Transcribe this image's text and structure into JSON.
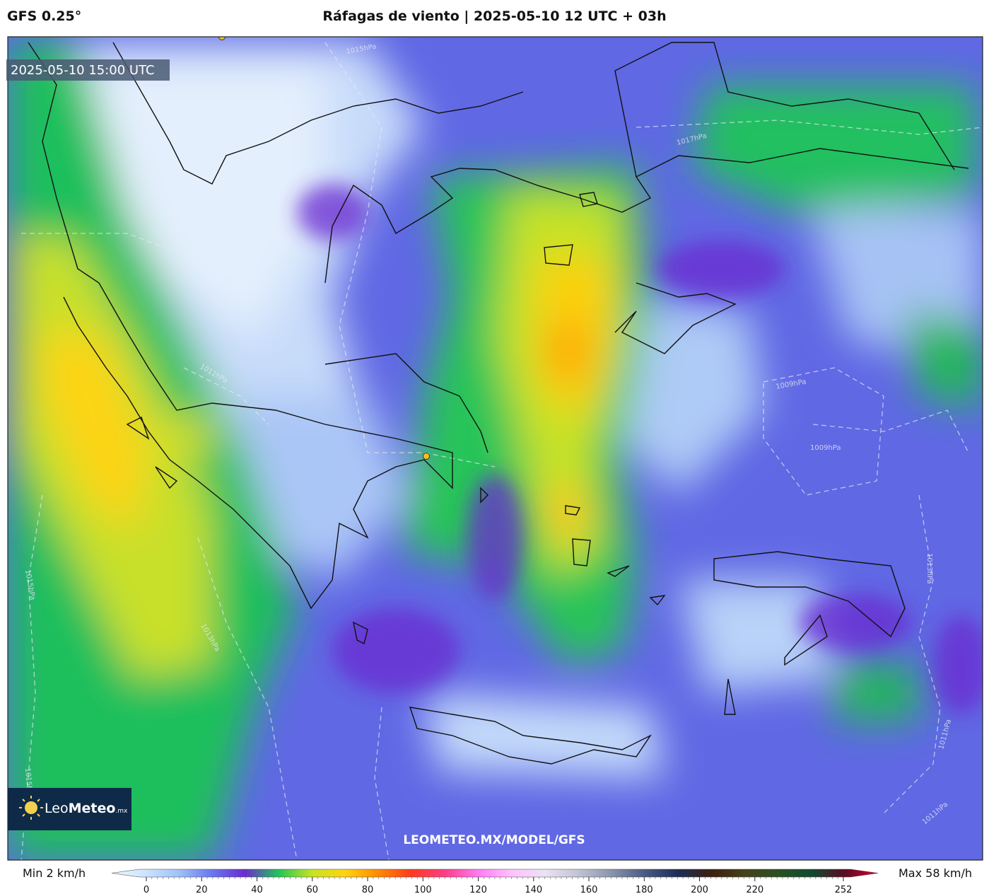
{
  "header": {
    "model": "GFS 0.25°",
    "title": "Ráfagas de viento | 2025-05-10 12 UTC + 03h"
  },
  "map": {
    "valid_time": "2025-05-10 15:00 UTC",
    "watermark": "LEOMETEO.MX/MODEL/GFS",
    "logo": {
      "name": "Leo",
      "brand": "Meteo",
      "suffix": ".mx"
    },
    "isobar_labels": [
      "1017hPa",
      "1009hPa",
      "1009hPa",
      "1013hPa",
      "1011hPa",
      "1011hPa",
      "1015hPa",
      "1015hPa",
      "1013hPa",
      "1011hPa",
      "1015hPa"
    ]
  },
  "colorbar": {
    "min_label": "Min 2 km/h",
    "max_label": "Max 58 km/h",
    "ticks": [
      0,
      20,
      40,
      60,
      80,
      100,
      120,
      140,
      160,
      180,
      200,
      220,
      252
    ],
    "colors": [
      "#eef6ff",
      "#cfe4ff",
      "#9fc2f8",
      "#6a78ee",
      "#6a2cd0",
      "#22c45a",
      "#c4e324",
      "#ffd412",
      "#ff8a00",
      "#ff3a1e",
      "#ff3c86",
      "#ff7cf2",
      "#ffc2ff",
      "#ece2f2",
      "#c2c4d4",
      "#8a94ac",
      "#4a5a82",
      "#1c2c56",
      "#3a2010",
      "#46401a",
      "#2a5020",
      "#104a30",
      "#5a0a22",
      "#e0002e"
    ]
  }
}
